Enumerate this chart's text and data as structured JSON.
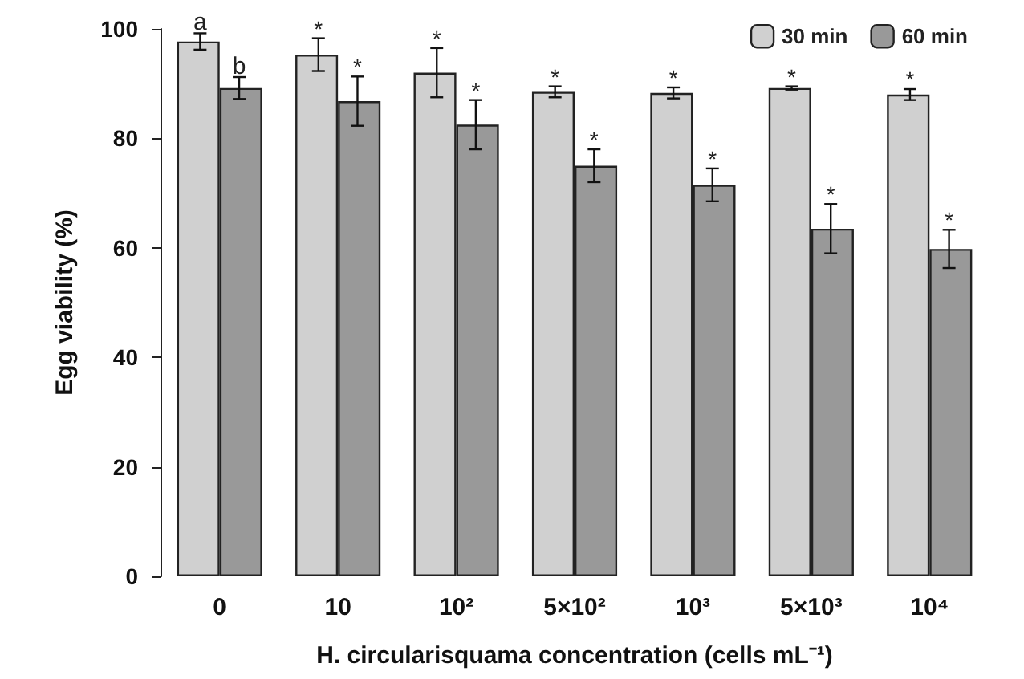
{
  "chart_data": {
    "type": "bar",
    "xlabel": "H. circularisquama concentration (cells mL⁻¹)",
    "ylabel": "Egg viability (%)",
    "categories": [
      "0",
      "10",
      "10²",
      "5×10²",
      "10³",
      "5×10³",
      "10⁴"
    ],
    "series": [
      {
        "name": "30 min",
        "color": "#d0d0d0",
        "values": [
          97.7,
          95.3,
          92,
          88.5,
          88.3,
          89.2,
          88
        ],
        "errors": [
          1.5,
          3,
          4.5,
          1,
          1,
          0.3,
          1
        ]
      },
      {
        "name": "60 min",
        "color": "#999999",
        "values": [
          89.2,
          86.8,
          82.5,
          75,
          71.5,
          63.5,
          59.8
        ],
        "errors": [
          2,
          4.5,
          4.5,
          3,
          3,
          4.5,
          3.5
        ]
      }
    ],
    "ylim": [
      0,
      100
    ],
    "yticks": [
      0,
      20,
      40,
      60,
      80,
      100
    ],
    "grid": false,
    "legend": "top right",
    "annotations": [
      "a",
      "b",
      "*",
      "*",
      "*",
      "*",
      "*",
      "*",
      "*",
      "*",
      "*",
      "*",
      "*",
      "*"
    ]
  }
}
